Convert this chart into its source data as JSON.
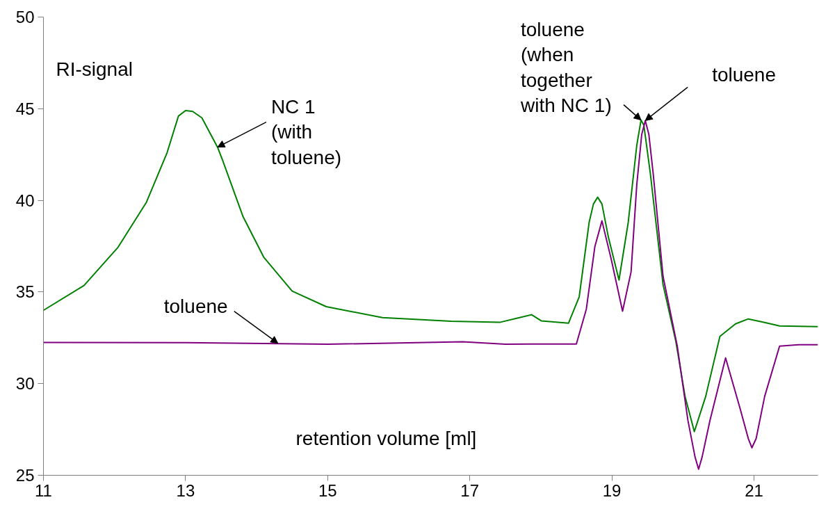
{
  "chart_data": {
    "type": "line",
    "xlabel": "retention volume  [ml]",
    "ylabel": "RI-signal",
    "xlim": [
      11,
      21.9
    ],
    "xticks": [
      11,
      13,
      15,
      17,
      19,
      21
    ],
    "ylim": [
      25,
      50
    ],
    "yticks": [
      25,
      30,
      35,
      40,
      45,
      50
    ],
    "grid": false,
    "marker": "none",
    "line_style": "solid",
    "series": [
      {
        "color": "#008000",
        "x": [
          11,
          11.57,
          12.05,
          12.45,
          12.74,
          12.9,
          13.0,
          13.1,
          13.23,
          13.45,
          13.52,
          13.81,
          14.1,
          14.5,
          14.98,
          15.77,
          16.74,
          17.43,
          17.67,
          17.87,
          18.01,
          18.39,
          18.54,
          18.68,
          18.74,
          18.8,
          18.86,
          18.95,
          19.1,
          19.23,
          19.35,
          19.41,
          19.45,
          19.54,
          19.72,
          19.9,
          20.03,
          20.16,
          20.32,
          20.52,
          20.74,
          20.92,
          21.15,
          21.36,
          21.9
        ],
        "values": [
          34.0,
          35.35,
          37.44,
          39.9,
          42.6,
          44.6,
          44.9,
          44.85,
          44.5,
          42.9,
          42.2,
          39.1,
          36.9,
          35.05,
          34.2,
          33.6,
          33.4,
          33.35,
          33.57,
          33.76,
          33.42,
          33.3,
          34.74,
          38.8,
          39.8,
          40.17,
          39.8,
          38.0,
          35.65,
          38.8,
          43.0,
          44.38,
          44.1,
          41.5,
          35.4,
          32.3,
          29.3,
          27.38,
          29.3,
          32.58,
          33.26,
          33.53,
          33.34,
          33.15,
          33.11
        ]
      },
      {
        "color": "#800080",
        "x": [
          11,
          13,
          15,
          16.9,
          17.5,
          18.01,
          18.5,
          18.64,
          18.76,
          18.86,
          18.99,
          19.15,
          19.27,
          19.35,
          19.42,
          19.47,
          19.52,
          19.58,
          19.72,
          19.92,
          20.07,
          20.17,
          20.22,
          20.27,
          20.38,
          20.6,
          20.8,
          20.92,
          20.97,
          21.03,
          21.15,
          21.36,
          21.63,
          21.9
        ],
        "values": [
          32.25,
          32.24,
          32.15,
          32.28,
          32.15,
          32.16,
          32.16,
          34.06,
          37.47,
          38.88,
          36.8,
          33.95,
          36.1,
          40.85,
          43.6,
          44.35,
          43.6,
          41.5,
          35.85,
          32.05,
          27.99,
          26.0,
          25.33,
          26.0,
          27.99,
          31.4,
          28.7,
          27.0,
          26.5,
          27.0,
          29.3,
          32.05,
          32.12,
          32.12
        ]
      }
    ],
    "annotations": [
      {
        "text": "NC 1\n(with\ntoluene)",
        "x": 13.45,
        "y": 42.9
      },
      {
        "text": "toluene",
        "x": 14.3,
        "y": 32.2
      },
      {
        "text": "toluene\n(when\ntogether\nwith NC 1)",
        "x": 19.41,
        "y": 44.38
      },
      {
        "text": "toluene",
        "x": 19.47,
        "y": 44.35
      }
    ]
  }
}
